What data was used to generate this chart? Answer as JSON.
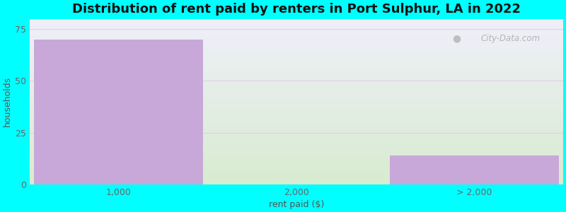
{
  "categories": [
    "1,000",
    "2,000",
    "> 2,000"
  ],
  "values": [
    70,
    0,
    14
  ],
  "bar_color": "#C8A8D8",
  "title": "Distribution of rent paid by renters in Port Sulphur, LA in 2022",
  "xlabel": "rent paid ($)",
  "ylabel": "households",
  "ylim": [
    0,
    80
  ],
  "yticks": [
    0,
    25,
    50,
    75
  ],
  "background_color": "#00FFFF",
  "plot_bg_top": "#F0EFFA",
  "plot_bg_bottom": "#D8ECD0",
  "title_fontsize": 13,
  "label_fontsize": 9,
  "tick_fontsize": 9,
  "bar_width": 0.95,
  "watermark": "City-Data.com",
  "grid_color": "#E0D0E8"
}
